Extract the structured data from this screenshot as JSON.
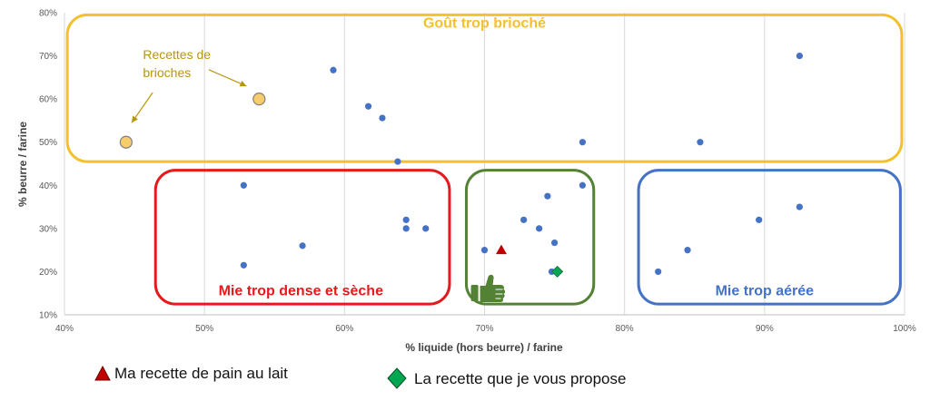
{
  "chart_data": {
    "type": "scatter",
    "title": "",
    "xlabel": "% liquide (hors beurre) / farine",
    "ylabel": "% beurre / farine",
    "xlim": [
      0.4,
      1.0
    ],
    "ylim": [
      0.1,
      0.8
    ],
    "x_ticks": [
      {
        "value": 0.4,
        "label": "40%"
      },
      {
        "value": 0.5,
        "label": "50%"
      },
      {
        "value": 0.6,
        "label": "60%"
      },
      {
        "value": 0.7,
        "label": "70%"
      },
      {
        "value": 0.8,
        "label": "80%"
      },
      {
        "value": 0.9,
        "label": "90%"
      },
      {
        "value": 1.0,
        "label": "100%"
      }
    ],
    "y_ticks": [
      {
        "value": 0.1,
        "label": "10%"
      },
      {
        "value": 0.2,
        "label": "20%"
      },
      {
        "value": 0.3,
        "label": "30%"
      },
      {
        "value": 0.4,
        "label": "40%"
      },
      {
        "value": 0.5,
        "label": "50%"
      },
      {
        "value": 0.6,
        "label": "60%"
      },
      {
        "value": 0.7,
        "label": "70%"
      },
      {
        "value": 0.8,
        "label": "80%"
      }
    ],
    "grid": "vertical",
    "series": [
      {
        "marker": "circle",
        "color": "#4472c4",
        "points": [
          {
            "x": 0.592,
            "y": 0.667
          },
          {
            "x": 0.617,
            "y": 0.583
          },
          {
            "x": 0.627,
            "y": 0.556
          },
          {
            "x": 0.638,
            "y": 0.455
          },
          {
            "x": 0.77,
            "y": 0.5
          },
          {
            "x": 0.854,
            "y": 0.5
          },
          {
            "x": 0.925,
            "y": 0.7
          },
          {
            "x": 0.528,
            "y": 0.4
          },
          {
            "x": 0.528,
            "y": 0.215
          },
          {
            "x": 0.57,
            "y": 0.26
          },
          {
            "x": 0.644,
            "y": 0.32
          },
          {
            "x": 0.644,
            "y": 0.3
          },
          {
            "x": 0.658,
            "y": 0.3
          },
          {
            "x": 0.7,
            "y": 0.25
          },
          {
            "x": 0.728,
            "y": 0.32
          },
          {
            "x": 0.739,
            "y": 0.3
          },
          {
            "x": 0.745,
            "y": 0.375
          },
          {
            "x": 0.75,
            "y": 0.267
          },
          {
            "x": 0.77,
            "y": 0.4
          },
          {
            "x": 0.748,
            "y": 0.2
          },
          {
            "x": 0.824,
            "y": 0.2
          },
          {
            "x": 0.845,
            "y": 0.25
          },
          {
            "x": 0.896,
            "y": 0.32
          },
          {
            "x": 0.925,
            "y": 0.35
          }
        ]
      },
      {
        "marker": "circle-large",
        "color": "#f7cd6b",
        "edge_color": "#7f7f7f",
        "points": [
          {
            "x": 0.444,
            "y": 0.5
          },
          {
            "x": 0.539,
            "y": 0.6
          }
        ]
      },
      {
        "name": "Ma recette de pain au lait",
        "marker": "triangle",
        "color": "#c00000",
        "points": [
          {
            "x": 0.712,
            "y": 0.25
          }
        ]
      },
      {
        "name": "La recette que je vous propose",
        "marker": "diamond",
        "color": "#00a650",
        "points": [
          {
            "x": 0.752,
            "y": 0.2
          }
        ]
      }
    ],
    "zones": [
      {
        "label": "Goût trop brioché",
        "color": "#f2c12e",
        "x0": 0.402,
        "x1": 0.998,
        "y0": 0.455,
        "y1": 0.795,
        "label_x": 0.7,
        "label_y": 0.765
      },
      {
        "label": "Mie trop dense et sèche",
        "color": "#e41a1c",
        "x0": 0.465,
        "x1": 0.675,
        "y0": 0.125,
        "y1": 0.435,
        "label_x": 0.51,
        "label_y": 0.145
      },
      {
        "label": "",
        "color": "#548235",
        "x0": 0.687,
        "x1": 0.778,
        "y0": 0.125,
        "y1": 0.435
      },
      {
        "label": "Mie trop aérée",
        "color": "#4472c4",
        "x0": 0.81,
        "x1": 0.997,
        "y0": 0.125,
        "y1": 0.435,
        "label_x": 0.9,
        "label_y": 0.145
      }
    ],
    "annotations": [
      {
        "text": [
          "Recettes de",
          "brioches"
        ],
        "x": 0.456,
        "y": 0.693,
        "color": "#b8960b"
      }
    ],
    "annotation_arrows": [
      {
        "from": [
          0.503,
          0.668
        ],
        "to": [
          0.53,
          0.63
        ]
      },
      {
        "from": [
          0.463,
          0.615
        ],
        "to": [
          0.448,
          0.545
        ]
      }
    ],
    "thumbs_up_icon": {
      "name": "thumbs-up-icon",
      "x": 0.702,
      "y": 0.163,
      "color": "#548235"
    }
  },
  "legend": [
    {
      "label": "Ma recette de pain au lait",
      "marker": "triangle",
      "color": "#c00000"
    },
    {
      "label": "La recette que je vous propose",
      "marker": "diamond",
      "color": "#00a650"
    }
  ]
}
